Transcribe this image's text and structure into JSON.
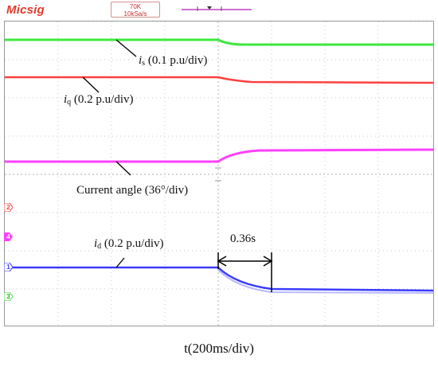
{
  "header": {
    "brand": "Micsig",
    "memory_depth": "70K",
    "sample_rate": "10kSa/s"
  },
  "annotations": {
    "is_symbol": "i",
    "is_sub": "s",
    "is_scale": " (0.1 p.u/div)",
    "iq_symbol": "i",
    "iq_sub": "q",
    "iq_scale": " (0.2 p.u/div)",
    "angle_label": "Current angle (36°/div)",
    "id_symbol": "i",
    "id_sub": "d",
    "id_scale": " (0.2 p.u/div)",
    "settling_time": "0.36s"
  },
  "channel_markers": [
    "2",
    "4",
    "1",
    "3"
  ],
  "x_axis_label": "t(200ms/div)",
  "colors": {
    "brand": "#e53a2a",
    "is_trace": "#3ee83e",
    "iq_trace": "#ff4040",
    "angle_trace": "#ff40ff",
    "id_trace": "#3b3bff",
    "grid": "#c8c8c8"
  }
}
